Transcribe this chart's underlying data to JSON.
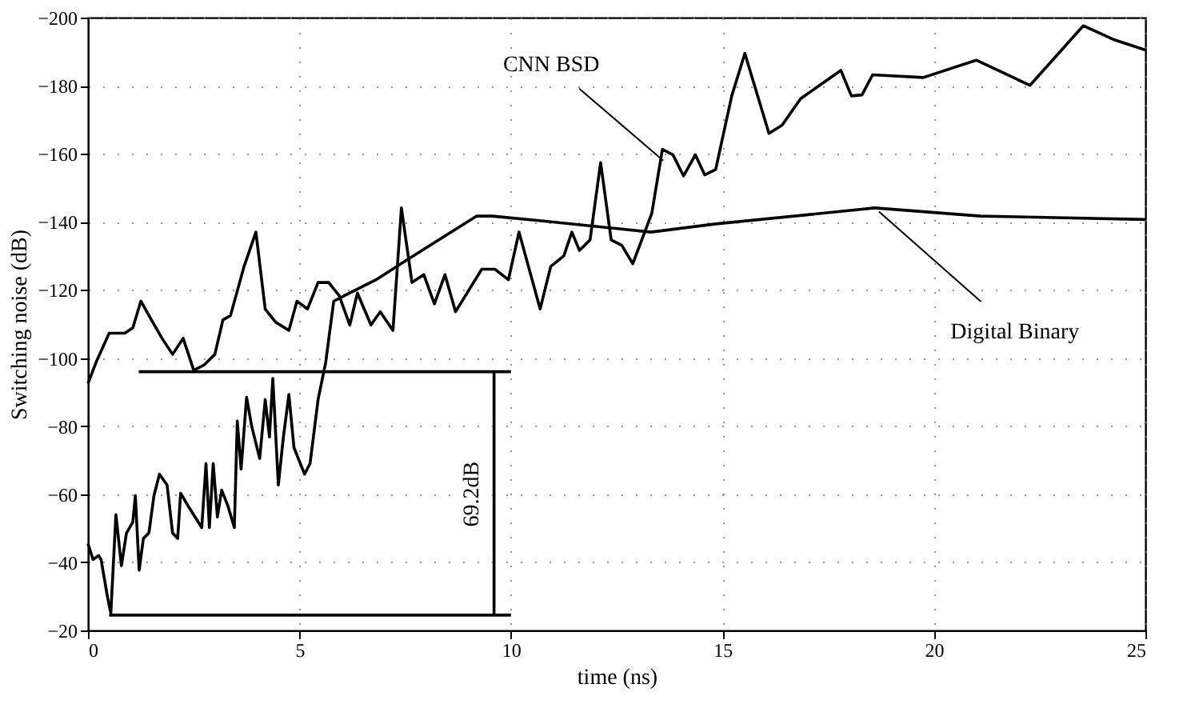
{
  "chart_data": {
    "type": "line",
    "xlabel": "time (ns)",
    "ylabel": "Switching noise (dB)",
    "xlim": [
      0,
      25
    ],
    "xticks": [
      0,
      5,
      10,
      15,
      20,
      25
    ],
    "ylim": [
      -20,
      -200
    ],
    "yticks": [
      -20,
      -40,
      -60,
      -80,
      -100,
      -120,
      -140,
      -160,
      -180,
      -200
    ],
    "grid": true,
    "legend": false,
    "line_style": "solid",
    "marker": "none",
    "series": [
      {
        "color": "#000000",
        "x": [
          0,
          0.19,
          0.5,
          0.87,
          1.06,
          1.25,
          1.5,
          1.75,
          2.0,
          2.25,
          2.5,
          2.75,
          3.0,
          3.19,
          3.37,
          3.69,
          3.97,
          4.19,
          4.44,
          4.75,
          4.94,
          5.19,
          5.44,
          5.69,
          5.94,
          6.19,
          6.37,
          6.69,
          6.91,
          7.21,
          7.41,
          7.66,
          7.94,
          8.19,
          8.44,
          8.69,
          9.31,
          9.62,
          9.94,
          10.19,
          10.69,
          10.94,
          11.25,
          11.44,
          11.62,
          11.87,
          12.12,
          12.37,
          12.62,
          12.88,
          13.33,
          13.58,
          13.83,
          14.08,
          14.36,
          14.58,
          14.84,
          15.22,
          15.53,
          16.1,
          16.41,
          16.85,
          17.8,
          18.05,
          18.3,
          18.55,
          19.75,
          21.0,
          22.27,
          23.53,
          24.28,
          25
        ],
        "values": [
          -92.5,
          -98.7,
          -107.3,
          -107.3,
          -108.9,
          -116.7,
          -111.2,
          -105.8,
          -101.1,
          -105.8,
          -96.4,
          -98,
          -101.1,
          -111.2,
          -112.5,
          -126.9,
          -137,
          -114.4,
          -110.5,
          -108.1,
          -116.7,
          -114.4,
          -122.2,
          -122.2,
          -118.3,
          -109.7,
          -119.1,
          -109.7,
          -113.6,
          -108.1,
          -144.1,
          -122.2,
          -124.5,
          -115.9,
          -124.5,
          -113.6,
          -126.1,
          -126.1,
          -123,
          -137,
          -114.4,
          -126.9,
          -130,
          -137,
          -131.6,
          -134.7,
          -157.4,
          -134.7,
          -133.1,
          -127.7,
          -142.5,
          -161.3,
          -159.7,
          -153.5,
          -159.7,
          -153.8,
          -155.4,
          -177,
          -189.5,
          -166,
          -168.4,
          -176.2,
          -184.5,
          -177,
          -177.3,
          -183.2,
          -182.4,
          -187.5,
          -180.1,
          -197.6,
          -193.4,
          -190.5
        ]
      },
      {
        "color": "#000000",
        "x": [
          0,
          0.12,
          0.25,
          0.31,
          0.46,
          0.54,
          0.66,
          0.79,
          0.91,
          1.06,
          1.12,
          1.21,
          1.31,
          1.44,
          1.56,
          1.69,
          1.87,
          2.0,
          2.12,
          2.19,
          2.37,
          2.69,
          2.79,
          2.87,
          2.96,
          3.06,
          3.16,
          3.31,
          3.46,
          3.53,
          3.62,
          3.75,
          3.87,
          4.06,
          4.19,
          4.29,
          4.37,
          4.5,
          4.62,
          4.75,
          4.87,
          5.12,
          5.25,
          5.44,
          5.62,
          5.81,
          6.06,
          6.81,
          7.56,
          9.19,
          9.56,
          10.81,
          13.31,
          14.84,
          17.98,
          18.6,
          21.1,
          25
        ],
        "values": [
          -45.5,
          -40.8,
          -42,
          -40.8,
          -29.9,
          -25,
          -54,
          -39,
          -48.6,
          -51.8,
          -59.6,
          -37.7,
          -47,
          -48.6,
          -59.6,
          -65.9,
          -62.7,
          -48.6,
          -47,
          -60.3,
          -56.5,
          -50.2,
          -69,
          -50.2,
          -69,
          -53.3,
          -61.2,
          -56.5,
          -50.2,
          -81.5,
          -67.4,
          -88.5,
          -80,
          -70.5,
          -87.8,
          -76.8,
          -94,
          -62.7,
          -76.8,
          -89.3,
          -73.7,
          -65.9,
          -69,
          -87.8,
          -98.7,
          -116.7,
          -118.3,
          -123,
          -129,
          -141.7,
          -141.7,
          -140.2,
          -137,
          -139.4,
          -143.3,
          -144.1,
          -141.7,
          -140.7
        ]
      },
      {
        "color": "#000000",
        "x": [
          1.2,
          10
        ],
        "values": [
          -96,
          -96
        ]
      },
      {
        "color": "#000000",
        "x": [
          0.5,
          10
        ],
        "values": [
          -24.5,
          -24.5
        ]
      },
      {
        "color": "#000000",
        "x": [
          9.6,
          9.6
        ],
        "values": [
          -96,
          -24.5
        ]
      }
    ],
    "annotations": [
      {
        "text": "CNN BSD",
        "x": 13.6,
        "y": -158
      },
      {
        "text": "Digital Binary",
        "x": 18.7,
        "y": -143
      },
      {
        "text": "69.2dB",
        "x": 9.6,
        "y": -60
      }
    ]
  }
}
